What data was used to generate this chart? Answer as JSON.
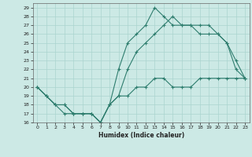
{
  "xlabel": "Humidex (Indice chaleur)",
  "ylabel": "",
  "xlim": [
    -0.5,
    23.5
  ],
  "ylim": [
    16,
    29.5
  ],
  "xticks": [
    0,
    1,
    2,
    3,
    4,
    5,
    6,
    7,
    8,
    9,
    10,
    11,
    12,
    13,
    14,
    15,
    16,
    17,
    18,
    19,
    20,
    21,
    22,
    23
  ],
  "yticks": [
    16,
    17,
    18,
    19,
    20,
    21,
    22,
    23,
    24,
    25,
    26,
    27,
    28,
    29
  ],
  "line_color": "#2e7d6e",
  "bg_color": "#cce9e5",
  "grid_color": "#aad4cf",
  "line1_x": [
    0,
    1,
    2,
    3,
    4,
    5,
    6,
    7,
    8,
    9,
    10,
    11,
    12,
    13,
    14,
    15,
    16,
    17,
    18,
    19,
    20,
    21,
    22,
    23
  ],
  "line1_y": [
    20,
    19,
    18,
    18,
    17,
    17,
    17,
    16,
    18,
    19,
    22,
    24,
    25,
    26,
    27,
    28,
    27,
    27,
    27,
    27,
    26,
    25,
    23,
    21
  ],
  "line2_x": [
    0,
    1,
    2,
    3,
    4,
    5,
    6,
    7,
    8,
    9,
    10,
    11,
    12,
    13,
    14,
    15,
    16,
    17,
    18,
    19,
    20,
    21,
    22,
    23
  ],
  "line2_y": [
    20,
    19,
    18,
    17,
    17,
    17,
    17,
    16,
    18,
    22,
    25,
    26,
    27,
    29,
    28,
    27,
    27,
    27,
    26,
    26,
    26,
    25,
    22,
    21
  ],
  "line3_x": [
    0,
    1,
    2,
    3,
    4,
    5,
    6,
    7,
    8,
    9,
    10,
    11,
    12,
    13,
    14,
    15,
    16,
    17,
    18,
    19,
    20,
    21,
    22,
    23
  ],
  "line3_y": [
    20,
    19,
    18,
    18,
    17,
    17,
    17,
    16,
    18,
    19,
    19,
    20,
    20,
    21,
    21,
    20,
    20,
    20,
    21,
    21,
    21,
    21,
    21,
    21
  ]
}
